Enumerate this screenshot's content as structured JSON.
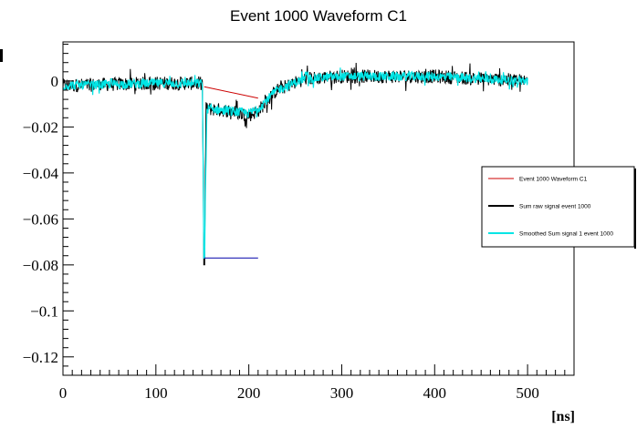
{
  "chart_data": {
    "type": "line",
    "title": "Event 1000 Waveform C1",
    "xlabel": "[ns]",
    "ylabel": "",
    "xlim": [
      0,
      550
    ],
    "ylim": [
      -0.128,
      0.017
    ],
    "x_ticks": [
      0,
      100,
      200,
      300,
      400,
      500
    ],
    "x_tick_labels": [
      "0",
      "100",
      "200",
      "300",
      "400",
      "500"
    ],
    "y_ticks": [
      0,
      -0.02,
      -0.04,
      -0.06,
      -0.08,
      -0.1,
      -0.12
    ],
    "y_tick_labels": [
      "0",
      "−0.02",
      "−0.04",
      "−0.06",
      "−0.08",
      "−0.1",
      "−0.12"
    ],
    "grid": false,
    "legend_position": "right",
    "series": [
      {
        "name": "Event 1000 Waveform C1",
        "color": "#cc0000",
        "style": "thin line",
        "points": [
          [
            152,
            -0.0025
          ],
          [
            210,
            -0.0075
          ]
        ]
      },
      {
        "name": "Sum raw signal event 1000",
        "color": "#000000",
        "style": "noisy waveform",
        "noise_amplitude": 0.003,
        "envelope": [
          [
            0,
            -0.002
          ],
          [
            50,
            -0.0015
          ],
          [
            100,
            -0.001
          ],
          [
            150,
            -0.001
          ],
          [
            152,
            -0.08
          ],
          [
            154,
            -0.012
          ],
          [
            180,
            -0.013
          ],
          [
            200,
            -0.015
          ],
          [
            210,
            -0.013
          ],
          [
            230,
            -0.004
          ],
          [
            260,
            0.001
          ],
          [
            300,
            0.002
          ],
          [
            400,
            0.002
          ],
          [
            500,
            0.0
          ]
        ]
      },
      {
        "name": "Smoothed Sum signal 1 event 1000",
        "color": "#00e5e5",
        "style": "smoothed waveform",
        "noise_amplitude": 0.002,
        "envelope": [
          [
            0,
            -0.002
          ],
          [
            50,
            -0.0015
          ],
          [
            100,
            -0.001
          ],
          [
            150,
            -0.001
          ],
          [
            152,
            -0.077
          ],
          [
            155,
            -0.012
          ],
          [
            180,
            -0.013
          ],
          [
            200,
            -0.014
          ],
          [
            210,
            -0.012
          ],
          [
            230,
            -0.004
          ],
          [
            260,
            0.001
          ],
          [
            300,
            0.002
          ],
          [
            400,
            0.002
          ],
          [
            500,
            0.0
          ]
        ]
      },
      {
        "name": "",
        "color": "#0000aa",
        "style": "horizontal marker",
        "points": [
          [
            152,
            -0.077
          ],
          [
            210,
            -0.077
          ]
        ]
      }
    ],
    "legend_entries": [
      {
        "label": "Event 1000 Waveform C1",
        "color": "#cc0000"
      },
      {
        "label": "Sum raw signal event 1000",
        "color": "#000000"
      },
      {
        "label": "Smoothed Sum signal 1 event 1000",
        "color": "#00e5e5"
      }
    ]
  }
}
